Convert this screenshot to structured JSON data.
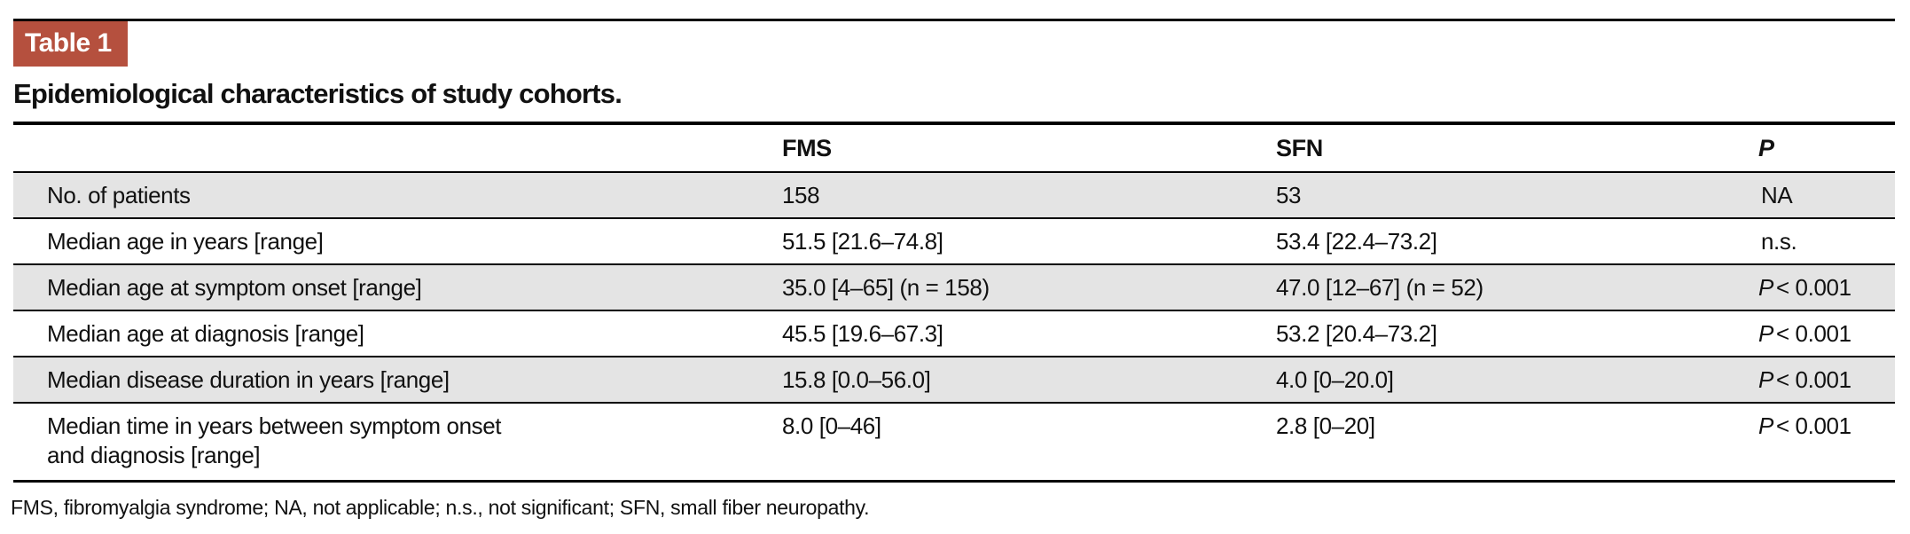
{
  "badge": {
    "label": "Table 1"
  },
  "title": "Epidemiological characteristics of study cohorts.",
  "table": {
    "header": {
      "label": "",
      "fms": "FMS",
      "sfn": "SFN",
      "p": "P"
    },
    "rows": [
      {
        "label": "No. of patients",
        "fms": "158",
        "sfn": "53",
        "p_prefix": "",
        "p_value": "NA"
      },
      {
        "label": "Median age in years [range]",
        "fms": "51.5 [21.6–74.8]",
        "sfn": "53.4 [22.4–73.2]",
        "p_prefix": "",
        "p_value": "n.s."
      },
      {
        "label": "Median age at symptom onset [range]",
        "fms": "35.0 [4–65] (n = 158)",
        "sfn": "47.0 [12–67] (n = 52)",
        "p_prefix": "P",
        "p_value": "< 0.001"
      },
      {
        "label": "Median age at diagnosis [range]",
        "fms": "45.5 [19.6–67.3]",
        "sfn": "53.2 [20.4–73.2]",
        "p_prefix": "P",
        "p_value": "< 0.001"
      },
      {
        "label": "Median disease duration in years [range]",
        "fms": "15.8 [0.0–56.0]",
        "sfn": "4.0 [0–20.0]",
        "p_prefix": "P",
        "p_value": "< 0.001"
      },
      {
        "label": "Median time in years between symptom onset",
        "label2": "and diagnosis [range]",
        "fms": "8.0 [0–46]",
        "sfn": "2.8 [0–20]",
        "p_prefix": "P",
        "p_value": "< 0.001"
      }
    ]
  },
  "footnote": "FMS, fibromyalgia syndrome; NA, not applicable; n.s., not significant; SFN, small fiber neuropathy.",
  "colors": {
    "accent_red": "#b5503e",
    "row_shade": "#e4e4e4",
    "rule": "#000000"
  }
}
